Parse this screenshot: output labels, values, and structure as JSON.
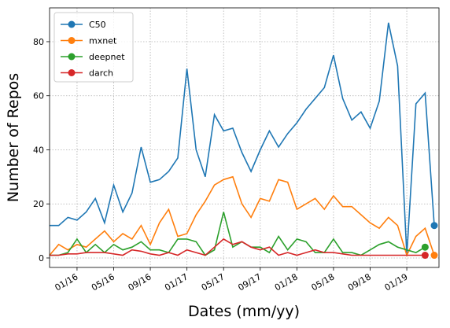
{
  "chart_data": {
    "type": "line",
    "x_label": "Dates (mm/yy)",
    "y_label": "Number of Repos",
    "x": [
      "10/15",
      "11/15",
      "12/15",
      "01/16",
      "02/16",
      "03/16",
      "04/16",
      "05/16",
      "06/16",
      "07/16",
      "08/16",
      "09/16",
      "10/16",
      "11/16",
      "12/16",
      "01/17",
      "02/17",
      "03/17",
      "04/17",
      "05/17",
      "06/17",
      "07/17",
      "08/17",
      "09/17",
      "10/17",
      "11/17",
      "12/17",
      "01/18",
      "02/18",
      "03/18",
      "04/18",
      "05/18",
      "06/18",
      "07/18",
      "08/18",
      "09/18",
      "10/18",
      "11/18",
      "12/18",
      "01/19",
      "02/19",
      "03/19",
      "04/19"
    ],
    "series": [
      {
        "name": "C50",
        "color": "#1f77b4",
        "values": [
          12,
          12,
          15,
          14,
          17,
          22,
          13,
          27,
          17,
          24,
          41,
          28,
          29,
          32,
          37,
          70,
          40,
          30,
          53,
          47,
          48,
          39,
          32,
          40,
          47,
          41,
          46,
          50,
          55,
          59,
          63,
          75,
          59,
          51,
          54,
          48,
          58,
          87,
          71,
          1,
          57,
          61,
          12
        ]
      },
      {
        "name": "mxnet",
        "color": "#ff7f0e",
        "values": [
          1,
          5,
          3,
          5,
          4,
          7,
          10,
          6,
          9,
          7,
          12,
          5,
          13,
          18,
          8,
          9,
          16,
          21,
          27,
          29,
          30,
          20,
          15,
          22,
          21,
          29,
          28,
          18,
          20,
          22,
          18,
          23,
          19,
          19,
          16,
          13,
          11,
          15,
          12,
          1,
          8,
          11,
          1
        ]
      },
      {
        "name": "deepnet",
        "color": "#2ca02c",
        "values": [
          1,
          1,
          2,
          7,
          2,
          5,
          2,
          5,
          3,
          4,
          6,
          3,
          3,
          2,
          7,
          7,
          6,
          1,
          3,
          17,
          4,
          6,
          4,
          4,
          2,
          8,
          3,
          7,
          6,
          2,
          2,
          7,
          2,
          2,
          1,
          3,
          5,
          6,
          4,
          3,
          2,
          4,
          null
        ]
      },
      {
        "name": "darch",
        "color": "#d62728",
        "values": [
          1,
          1,
          1.5,
          1.5,
          2,
          2,
          2,
          1.5,
          1,
          3,
          2.5,
          1.5,
          1,
          2,
          1,
          3,
          2,
          1,
          4,
          7,
          5,
          6,
          4,
          3,
          4,
          1,
          2,
          1,
          2,
          3,
          2,
          2,
          1.5,
          1,
          1,
          1,
          1,
          1,
          1,
          1,
          1,
          1,
          null
        ]
      }
    ],
    "xticks": [
      "01/16",
      "05/16",
      "09/16",
      "01/17",
      "05/17",
      "09/17",
      "01/18",
      "05/18",
      "09/18",
      "01/19"
    ],
    "ylim": [
      -3.5,
      92.5
    ],
    "yticks": [
      0,
      20,
      40,
      60,
      80
    ],
    "grid": true,
    "legend": "upper left"
  }
}
